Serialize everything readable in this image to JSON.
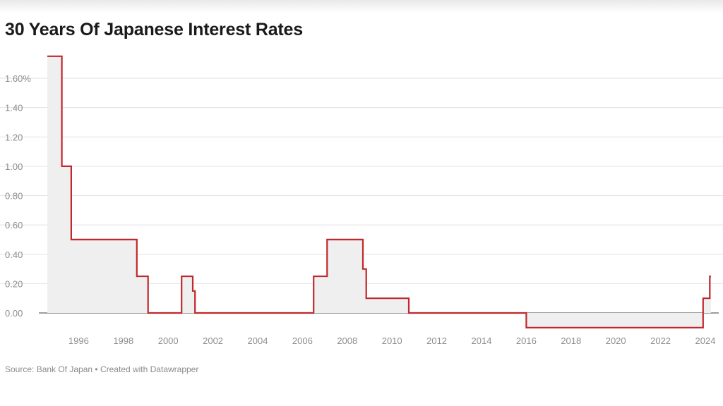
{
  "chart_data": {
    "type": "area",
    "title": "30 Years Of Japanese Interest Rates",
    "source": "Source: Bank Of Japan • Created with Datawrapper",
    "xlabel": "",
    "ylabel": "",
    "y_ticks": [
      {
        "value": 1.6,
        "label": "1.60%"
      },
      {
        "value": 1.4,
        "label": "1.40"
      },
      {
        "value": 1.2,
        "label": "1.20"
      },
      {
        "value": 1.0,
        "label": "1.00"
      },
      {
        "value": 0.8,
        "label": "0.80"
      },
      {
        "value": 0.6,
        "label": "0.60"
      },
      {
        "value": 0.4,
        "label": "0.40"
      },
      {
        "value": 0.2,
        "label": "0.20"
      },
      {
        "value": 0.0,
        "label": "0.00"
      }
    ],
    "x_ticks": [
      "1996",
      "1998",
      "2000",
      "2002",
      "2004",
      "2006",
      "2008",
      "2010",
      "2012",
      "2014",
      "2016",
      "2018",
      "2020",
      "2022",
      "2024"
    ],
    "xlim": [
      1994.6,
      2024.6
    ],
    "ylim": [
      -0.1,
      1.75
    ],
    "grid": true,
    "colors": {
      "line": "#c0282c",
      "fill": "#efefef",
      "grid": "#e2e2e2",
      "zero_line": "#3a3a3a"
    },
    "series": [
      {
        "step": true,
        "points": [
          [
            1994.6,
            1.75
          ],
          [
            1995.25,
            1.75
          ],
          [
            1995.25,
            1.0
          ],
          [
            1995.67,
            1.0
          ],
          [
            1995.67,
            0.5
          ],
          [
            1998.6,
            0.5
          ],
          [
            1998.6,
            0.25
          ],
          [
            1999.1,
            0.25
          ],
          [
            1999.1,
            0.0
          ],
          [
            2000.6,
            0.0
          ],
          [
            2000.6,
            0.25
          ],
          [
            2001.1,
            0.25
          ],
          [
            2001.1,
            0.15
          ],
          [
            2001.2,
            0.15
          ],
          [
            2001.2,
            0.0
          ],
          [
            2006.5,
            0.0
          ],
          [
            2006.5,
            0.25
          ],
          [
            2007.1,
            0.25
          ],
          [
            2007.1,
            0.5
          ],
          [
            2008.7,
            0.5
          ],
          [
            2008.7,
            0.3
          ],
          [
            2008.85,
            0.3
          ],
          [
            2008.85,
            0.1
          ],
          [
            2010.75,
            0.1
          ],
          [
            2010.75,
            0.0
          ],
          [
            2016.0,
            0.0
          ],
          [
            2016.0,
            -0.1
          ],
          [
            2023.9,
            -0.1
          ],
          [
            2023.9,
            0.1
          ],
          [
            2024.2,
            0.1
          ],
          [
            2024.2,
            0.25
          ],
          [
            2024.25,
            0.25
          ]
        ]
      }
    ]
  }
}
